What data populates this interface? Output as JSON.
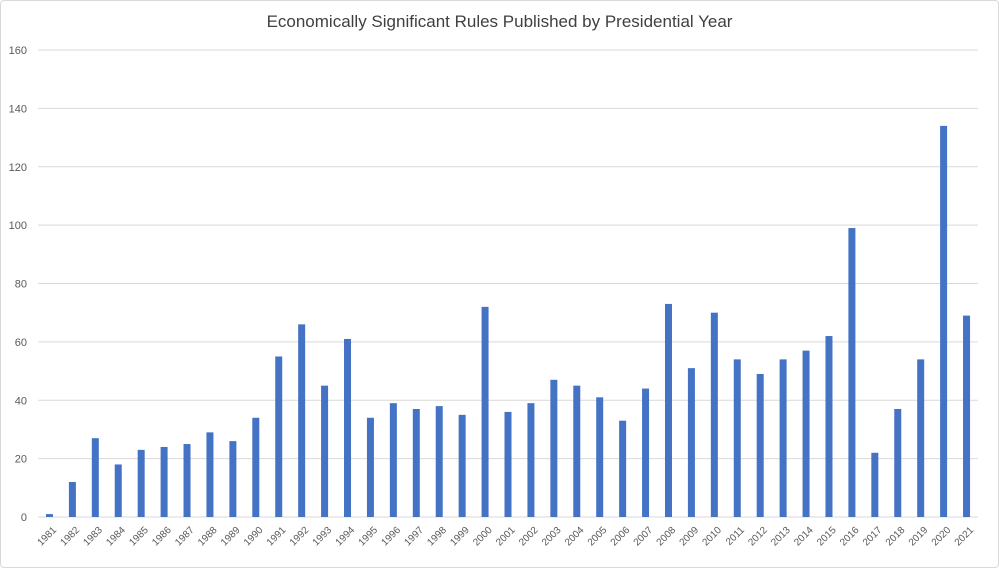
{
  "chart_data": {
    "type": "bar",
    "title": "Economically Significant Rules Published by Presidential Year",
    "xlabel": "",
    "ylabel": "",
    "ylim": [
      0,
      160
    ],
    "yticks": [
      0,
      20,
      40,
      60,
      80,
      100,
      120,
      140,
      160
    ],
    "grid": true,
    "legend": "none",
    "bar_color": "#4472c4",
    "grid_color": "#d9d9d9",
    "categories": [
      "1981",
      "1982",
      "1983",
      "1984",
      "1985",
      "1986",
      "1987",
      "1988",
      "1989",
      "1990",
      "1991",
      "1992",
      "1993",
      "1994",
      "1995",
      "1996",
      "1997",
      "1998",
      "1999",
      "2000",
      "2001",
      "2002",
      "2003",
      "2004",
      "2005",
      "2006",
      "2007",
      "2008",
      "2009",
      "2010",
      "2011",
      "2012",
      "2013",
      "2014",
      "2015",
      "2016",
      "2017",
      "2018",
      "2019",
      "2020",
      "2021"
    ],
    "values": [
      1,
      12,
      27,
      18,
      23,
      24,
      25,
      29,
      26,
      34,
      55,
      66,
      45,
      61,
      34,
      39,
      37,
      38,
      35,
      72,
      36,
      39,
      47,
      45,
      41,
      33,
      44,
      73,
      51,
      70,
      54,
      49,
      54,
      57,
      62,
      99,
      22,
      37,
      54,
      134,
      69
    ]
  }
}
